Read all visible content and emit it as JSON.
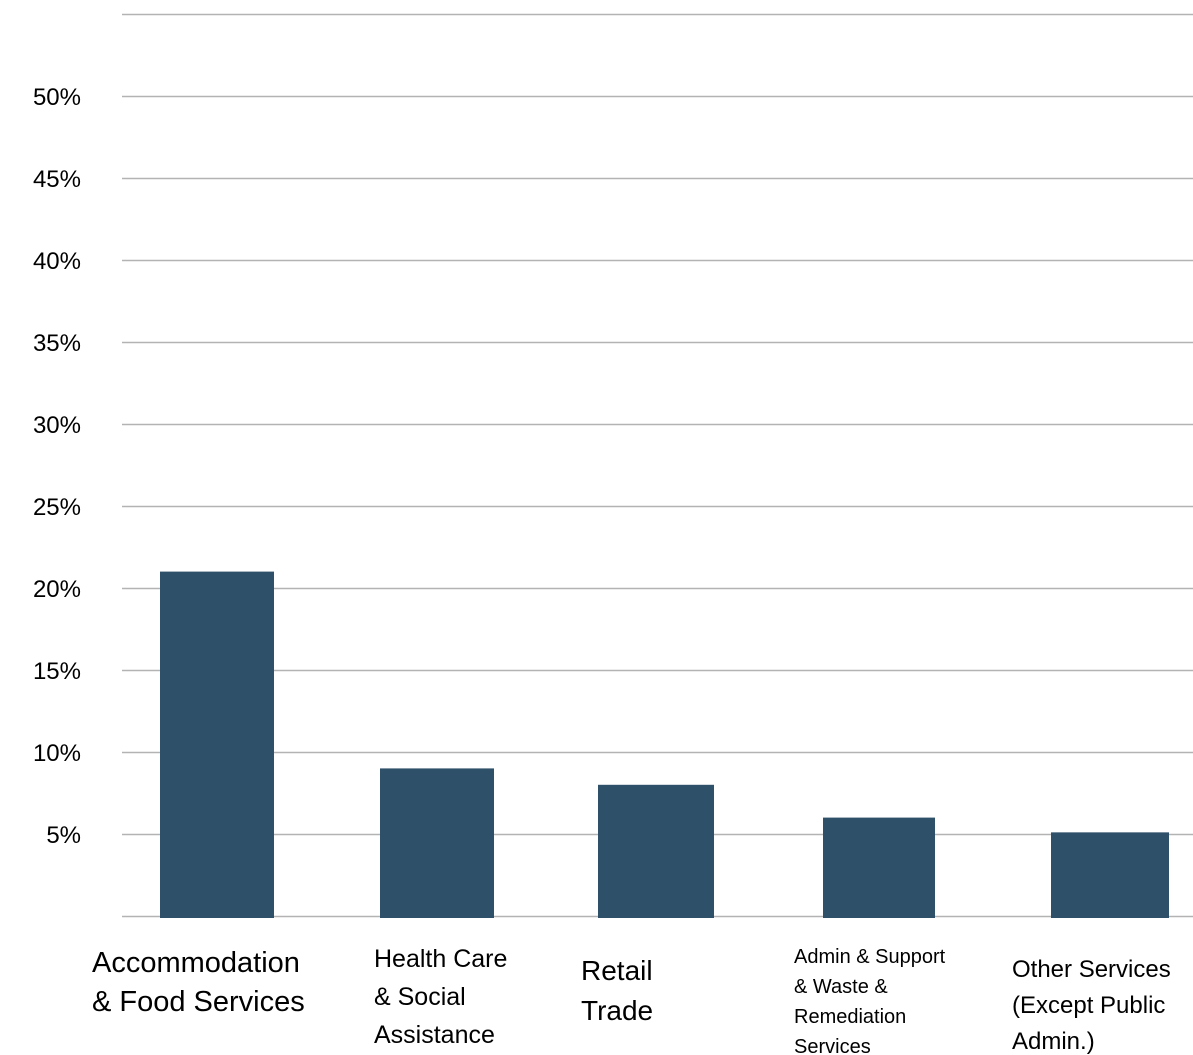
{
  "chart_data": {
    "type": "bar",
    "categories": [
      [
        "Accommodation",
        "& Food Services"
      ],
      [
        "Health Care",
        "& Social",
        "Assistance"
      ],
      [
        "Retail",
        "Trade"
      ],
      [
        "Admin & Support",
        "& Waste &",
        "Remediation",
        "Services"
      ],
      [
        "Other Services",
        "(Except Public",
        "Admin.)"
      ]
    ],
    "values": [
      21,
      9,
      8,
      6,
      5.1
    ],
    "y_tick_labels": [
      "5%",
      "10%",
      "15%",
      "20%",
      "25%",
      "30%",
      "35%",
      "40%",
      "45%",
      "50%"
    ],
    "ylim": [
      0,
      55
    ],
    "grid": true,
    "legend": "none",
    "bar_color": "#2e5069",
    "grid_color": "#b3b3b3"
  }
}
